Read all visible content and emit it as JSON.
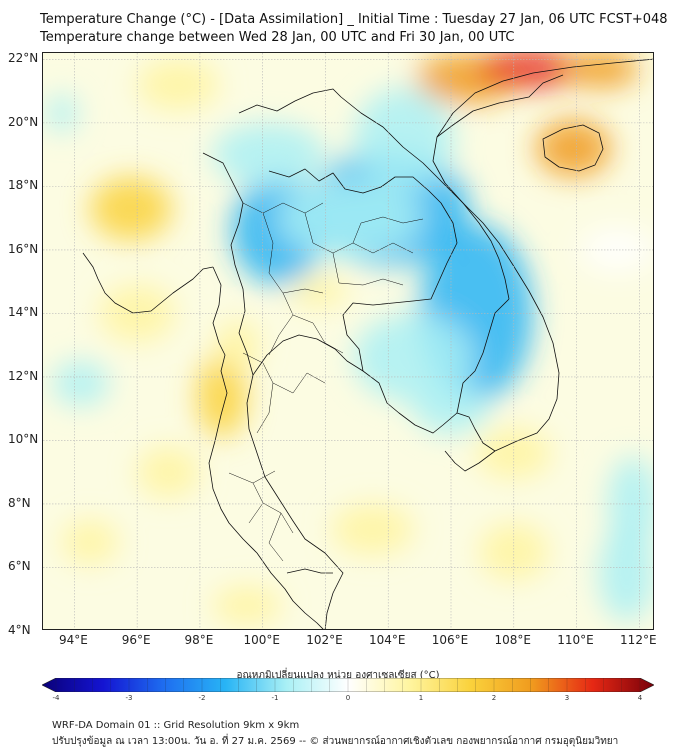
{
  "title_line1": "Temperature Change (°C) - [Data Assimilation] _ Initial Time : Tuesday 27 Jan, 06 UTC FCST+048",
  "title_line2": "Temperature change between Wed 28 Jan, 00 UTC and Fri 30 Jan, 00 UTC",
  "map": {
    "lon_range": [
      93,
      112.5
    ],
    "lat_range": [
      4,
      22.2
    ],
    "lat_labels": [
      "22°N",
      "20°N",
      "18°N",
      "16°N",
      "14°N",
      "12°N",
      "10°N",
      "8°N",
      "6°N",
      "4°N"
    ],
    "lat_values": [
      22,
      20,
      18,
      16,
      14,
      12,
      10,
      8,
      6,
      4
    ],
    "lon_labels": [
      "94°E",
      "96°E",
      "98°E",
      "100°E",
      "102°E",
      "104°E",
      "106°E",
      "108°E",
      "110°E",
      "112°E"
    ],
    "lon_values": [
      94,
      96,
      98,
      100,
      102,
      104,
      106,
      108,
      110,
      112
    ],
    "gridlines": true,
    "field_blobs": [
      {
        "lon": 104.0,
        "lat": 17.3,
        "rx": 2.6,
        "ry": 1.8,
        "value": -1.6
      },
      {
        "lon": 100.5,
        "lat": 16.6,
        "rx": 1.5,
        "ry": 1.7,
        "value": -1.3
      },
      {
        "lon": 104.5,
        "lat": 19.5,
        "rx": 1.6,
        "ry": 1.6,
        "value": -0.9
      },
      {
        "lon": 106.8,
        "lat": 14.0,
        "rx": 1.8,
        "ry": 2.8,
        "value": -1.3
      },
      {
        "lon": 104.8,
        "lat": 12.6,
        "rx": 1.9,
        "ry": 1.4,
        "value": -1.0
      },
      {
        "lon": 102.8,
        "lat": 17.0,
        "rx": 2.3,
        "ry": 1.2,
        "value": -1.0
      },
      {
        "lon": 100.2,
        "lat": 19.0,
        "rx": 1.8,
        "ry": 1.0,
        "value": -0.7
      },
      {
        "lon": 106.0,
        "lat": 11.0,
        "rx": 1.2,
        "ry": 0.8,
        "value": -0.6
      },
      {
        "lon": 111.8,
        "lat": 8.0,
        "rx": 0.8,
        "ry": 1.5,
        "value": -0.8
      },
      {
        "lon": 111.6,
        "lat": 5.8,
        "rx": 0.9,
        "ry": 1.5,
        "value": -1.0
      },
      {
        "lon": 94.2,
        "lat": 11.8,
        "rx": 0.9,
        "ry": 0.7,
        "value": -0.7
      },
      {
        "lon": 93.6,
        "lat": 20.3,
        "rx": 0.5,
        "ry": 0.6,
        "value": -0.7
      },
      {
        "lon": 111.3,
        "lat": 16.0,
        "rx": 1.2,
        "ry": 0.7,
        "value": -0.4
      },
      {
        "lon": 106.5,
        "lat": 21.4,
        "rx": 1.6,
        "ry": 0.8,
        "value": 2.2
      },
      {
        "lon": 108.5,
        "lat": 21.7,
        "rx": 1.6,
        "ry": 0.6,
        "value": 2.8
      },
      {
        "lon": 110.8,
        "lat": 21.7,
        "rx": 1.2,
        "ry": 0.6,
        "value": 2.3
      },
      {
        "lon": 109.9,
        "lat": 19.2,
        "rx": 1.2,
        "ry": 0.9,
        "value": 2.6
      },
      {
        "lon": 95.8,
        "lat": 17.3,
        "rx": 1.3,
        "ry": 1.0,
        "value": 1.3
      },
      {
        "lon": 98.7,
        "lat": 11.4,
        "rx": 0.8,
        "ry": 1.3,
        "value": 1.4
      },
      {
        "lon": 99.2,
        "lat": 13.0,
        "rx": 0.7,
        "ry": 0.8,
        "value": 1.0
      },
      {
        "lon": 101.8,
        "lat": 14.7,
        "rx": 0.9,
        "ry": 0.5,
        "value": 0.9
      },
      {
        "lon": 97.3,
        "lat": 21.2,
        "rx": 1.3,
        "ry": 0.8,
        "value": 0.8
      },
      {
        "lon": 103.5,
        "lat": 7.2,
        "rx": 1.3,
        "ry": 0.8,
        "value": 0.9
      },
      {
        "lon": 99.5,
        "lat": 4.8,
        "rx": 1.1,
        "ry": 0.6,
        "value": 0.8
      },
      {
        "lon": 108.0,
        "lat": 9.6,
        "rx": 1.2,
        "ry": 0.8,
        "value": 0.8
      },
      {
        "lon": 94.5,
        "lat": 6.8,
        "rx": 0.9,
        "ry": 0.7,
        "value": 0.6
      },
      {
        "lon": 108.0,
        "lat": 6.5,
        "rx": 1.1,
        "ry": 0.9,
        "value": 0.5
      },
      {
        "lon": 97.0,
        "lat": 9.0,
        "rx": 1.0,
        "ry": 0.8,
        "value": 0.6
      },
      {
        "lon": 96.0,
        "lat": 14.0,
        "rx": 1.2,
        "ry": 0.9,
        "value": 0.6
      }
    ]
  },
  "colorbar": {
    "label": "อุณหภูมิเปลี่ยนแปลง หน่วย องศาเซลเซียส (°C)",
    "min": -4,
    "max": 4,
    "tick_labels": [
      "-4",
      "-3",
      "-2",
      "-1",
      "0",
      "1",
      "2",
      "3",
      "4"
    ],
    "tick_values": [
      -4,
      -3,
      -2,
      -1,
      0,
      1,
      2,
      3,
      4
    ],
    "colors": [
      "#0a0078",
      "#1414d2",
      "#1e6ef0",
      "#28b4f5",
      "#aaf0f5",
      "#ffffff",
      "#fff5a0",
      "#fad23c",
      "#f09b1e",
      "#e62814",
      "#78000a"
    ]
  },
  "footer_line1": "WRF-DA Domain 01 :: Grid Resolution 9km x 9km",
  "footer_line2": "ปรับปรุงข้อมูล ณ เวลา 13:00น. วัน อ. ที่ 27 ม.ค. 2569 -- © ส่วนพยากรณ์อากาศเชิงตัวเลข กองพยากรณ์อากาศ กรมอุตุนิยมวิทยา"
}
